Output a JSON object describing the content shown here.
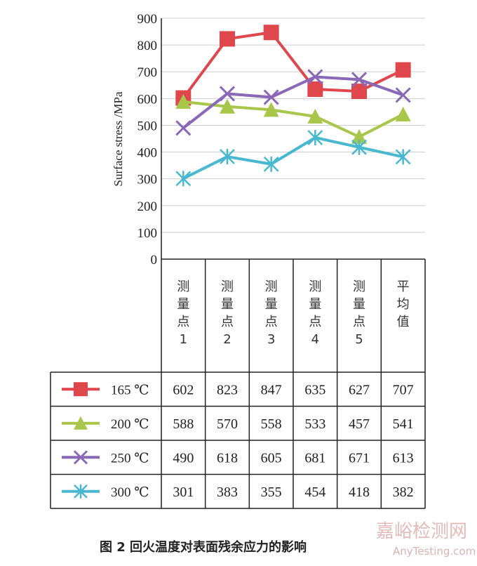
{
  "chart_data": {
    "type": "line",
    "ylabel": "Surface stress /MPa",
    "ylim": [
      0,
      900
    ],
    "yticks": [
      0,
      100,
      200,
      300,
      400,
      500,
      600,
      700,
      800,
      900
    ],
    "grid": true,
    "categories": [
      [
        "测",
        "量",
        "点",
        "1"
      ],
      [
        "测",
        "量",
        "点",
        "2"
      ],
      [
        "测",
        "量",
        "点",
        "3"
      ],
      [
        "测",
        "量",
        "点",
        "4"
      ],
      [
        "测",
        "量",
        "点",
        "5"
      ],
      [
        "平",
        "均",
        "值"
      ]
    ],
    "series": [
      {
        "name": "165 ℃",
        "color": "#e0474c",
        "marker": "square",
        "values": [
          602,
          823,
          847,
          635,
          627,
          707
        ]
      },
      {
        "name": "200 ℃",
        "color": "#a8c64a",
        "marker": "triangle",
        "values": [
          588,
          570,
          558,
          533,
          457,
          541
        ]
      },
      {
        "name": "250 ℃",
        "color": "#8a68b8",
        "marker": "x",
        "values": [
          490,
          618,
          605,
          681,
          671,
          613
        ]
      },
      {
        "name": "300 ℃",
        "color": "#47b8cf",
        "marker": "asterisk",
        "values": [
          301,
          383,
          355,
          454,
          418,
          382
        ]
      }
    ]
  },
  "caption": "图 2    回火温度对表面残余应力的影响",
  "watermark": {
    "cn": "嘉峪检测网",
    "en": "AnyTesting.com"
  }
}
